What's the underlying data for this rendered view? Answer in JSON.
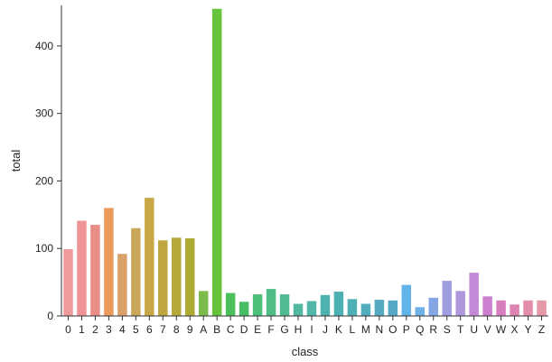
{
  "chart_data": {
    "type": "bar",
    "xlabel": "class",
    "ylabel": "total",
    "ylim": [
      0,
      460
    ],
    "yticks": [
      0,
      100,
      200,
      300,
      400
    ],
    "grid": false,
    "legend": "none",
    "categories": [
      "0",
      "1",
      "2",
      "3",
      "4",
      "5",
      "6",
      "7",
      "8",
      "9",
      "A",
      "B",
      "C",
      "D",
      "E",
      "F",
      "G",
      "H",
      "I",
      "J",
      "K",
      "L",
      "M",
      "N",
      "O",
      "P",
      "Q",
      "R",
      "S",
      "T",
      "U",
      "V",
      "W",
      "X",
      "Y",
      "Z"
    ],
    "values": [
      99,
      141,
      135,
      160,
      92,
      130,
      175,
      112,
      116,
      115,
      37,
      455,
      34,
      21,
      32,
      40,
      32,
      18,
      22,
      31,
      36,
      25,
      18,
      24,
      23,
      46,
      13,
      27,
      52,
      37,
      64,
      29,
      23,
      17,
      23,
      23
    ],
    "colors": [
      "#ef9b9e",
      "#ee9396",
      "#e98e86",
      "#ec9a5c",
      "#d9a069",
      "#cba759",
      "#c8a846",
      "#bfa53d",
      "#b6a93c",
      "#adab34",
      "#7dbb4d",
      "#66c43a",
      "#4cbf5a",
      "#48bd66",
      "#4dbf7a",
      "#50bd86",
      "#50bb93",
      "#52b9a0",
      "#52b7a8",
      "#4eb3ad",
      "#4db1b3",
      "#4eafb7",
      "#52adbc",
      "#55aac1",
      "#57a8c5",
      "#60b4ea",
      "#6fb0e7",
      "#85a6e4",
      "#9e9de0",
      "#b197dc",
      "#c28ad6",
      "#cc7fcf",
      "#d77fbe",
      "#de84b3",
      "#e38ea9",
      "#e699a8"
    ]
  }
}
